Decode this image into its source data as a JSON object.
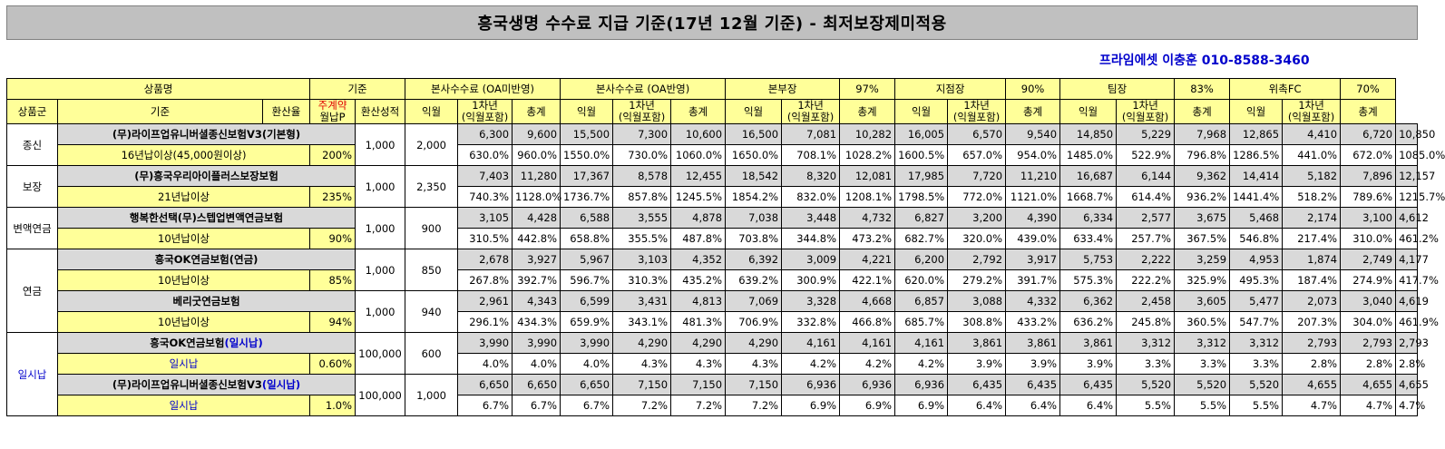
{
  "title": "흥국생명 수수료 지급 기준(17년 12월 기준) - 최저보장제미적용",
  "agent": "프라임에셋 이충훈 010-8588-3460",
  "header1": {
    "product": "상품명",
    "base": "기준",
    "groups": [
      {
        "label": "본사수수료 (OA미반영)",
        "pct": ""
      },
      {
        "label": "본사수수료 (OA반영)",
        "pct": ""
      },
      {
        "label": "본부장",
        "pct": "97%"
      },
      {
        "label": "지점장",
        "pct": "90%"
      },
      {
        "label": "팀장",
        "pct": "83%"
      },
      {
        "label": "위촉FC",
        "pct": "70%"
      }
    ]
  },
  "header2": {
    "group": "상품군",
    "criteria": "기준",
    "rate": "환산율",
    "weekly": "주계약",
    "monthly": "월납P",
    "score": "환산성적",
    "col1": "익월",
    "col2a": "1차년",
    "col2b": "(익월포함)",
    "col3": "총계"
  },
  "groups": [
    {
      "name": "종신"
    },
    {
      "name": "보장"
    },
    {
      "name": "변액연금"
    },
    {
      "name": "연금"
    },
    {
      "name": "일시납"
    }
  ],
  "products": [
    {
      "name": "(무)라이프업유니버셜종신보험V3(기본형)",
      "cond": "16년납이상(45,000원이상)",
      "rate": "200%",
      "prem": "1,000",
      "score": "2,000",
      "amounts": [
        "6,300",
        "9,600",
        "15,500",
        "7,300",
        "10,600",
        "16,500",
        "7,081",
        "10,282",
        "16,005",
        "6,570",
        "9,540",
        "14,850",
        "5,229",
        "7,968",
        "12,865",
        "4,410",
        "6,720",
        "10,850"
      ],
      "pcts": [
        "630.0%",
        "960.0%",
        "1550.0%",
        "730.0%",
        "1060.0%",
        "1650.0%",
        "708.1%",
        "1028.2%",
        "1600.5%",
        "657.0%",
        "954.0%",
        "1485.0%",
        "522.9%",
        "796.8%",
        "1286.5%",
        "441.0%",
        "672.0%",
        "1085.0%"
      ]
    },
    {
      "name": "(무)흥국우리아이플러스보장보험",
      "cond": "21년납이상",
      "rate": "235%",
      "prem": "1,000",
      "score": "2,350",
      "amounts": [
        "7,403",
        "11,280",
        "17,367",
        "8,578",
        "12,455",
        "18,542",
        "8,320",
        "12,081",
        "17,985",
        "7,720",
        "11,210",
        "16,687",
        "6,144",
        "9,362",
        "14,414",
        "5,182",
        "7,896",
        "12,157"
      ],
      "pcts": [
        "740.3%",
        "1128.0%",
        "1736.7%",
        "857.8%",
        "1245.5%",
        "1854.2%",
        "832.0%",
        "1208.1%",
        "1798.5%",
        "772.0%",
        "1121.0%",
        "1668.7%",
        "614.4%",
        "936.2%",
        "1441.4%",
        "518.2%",
        "789.6%",
        "1215.7%"
      ]
    },
    {
      "name": "행복한선택(무)스텝업변액연금보험",
      "cond": "10년납이상",
      "rate": "90%",
      "prem": "1,000",
      "score": "900",
      "amounts": [
        "3,105",
        "4,428",
        "6,588",
        "3,555",
        "4,878",
        "7,038",
        "3,448",
        "4,732",
        "6,827",
        "3,200",
        "4,390",
        "6,334",
        "2,577",
        "3,675",
        "5,468",
        "2,174",
        "3,100",
        "4,612"
      ],
      "pcts": [
        "310.5%",
        "442.8%",
        "658.8%",
        "355.5%",
        "487.8%",
        "703.8%",
        "344.8%",
        "473.2%",
        "682.7%",
        "320.0%",
        "439.0%",
        "633.4%",
        "257.7%",
        "367.5%",
        "546.8%",
        "217.4%",
        "310.0%",
        "461.2%"
      ]
    },
    {
      "name": "흥국OK연금보험(연금)",
      "cond": "10년납이상",
      "rate": "85%",
      "prem": "1,000",
      "score": "850",
      "amounts": [
        "2,678",
        "3,927",
        "5,967",
        "3,103",
        "4,352",
        "6,392",
        "3,009",
        "4,221",
        "6,200",
        "2,792",
        "3,917",
        "5,753",
        "2,222",
        "3,259",
        "4,953",
        "1,874",
        "2,749",
        "4,177"
      ],
      "pcts": [
        "267.8%",
        "392.7%",
        "596.7%",
        "310.3%",
        "435.2%",
        "639.2%",
        "300.9%",
        "422.1%",
        "620.0%",
        "279.2%",
        "391.7%",
        "575.3%",
        "222.2%",
        "325.9%",
        "495.3%",
        "187.4%",
        "274.9%",
        "417.7%"
      ]
    },
    {
      "name": "베리굿연금보험",
      "cond": "10년납이상",
      "rate": "94%",
      "prem": "1,000",
      "score": "940",
      "amounts": [
        "2,961",
        "4,343",
        "6,599",
        "3,431",
        "4,813",
        "7,069",
        "3,328",
        "4,668",
        "6,857",
        "3,088",
        "4,332",
        "6,362",
        "2,458",
        "3,605",
        "5,477",
        "2,073",
        "3,040",
        "4,619"
      ],
      "pcts": [
        "296.1%",
        "434.3%",
        "659.9%",
        "343.1%",
        "481.3%",
        "706.9%",
        "332.8%",
        "466.8%",
        "685.7%",
        "308.8%",
        "433.2%",
        "636.2%",
        "245.8%",
        "360.5%",
        "547.7%",
        "207.3%",
        "304.0%",
        "461.9%"
      ]
    },
    {
      "name": "흥국OK연금보험",
      "nameSuffix": "(일시납)",
      "cond": "일시납",
      "rate": "0.60%",
      "prem": "100,000",
      "score": "600",
      "amounts": [
        "3,990",
        "3,990",
        "3,990",
        "4,290",
        "4,290",
        "4,290",
        "4,161",
        "4,161",
        "4,161",
        "3,861",
        "3,861",
        "3,861",
        "3,312",
        "3,312",
        "3,312",
        "2,793",
        "2,793",
        "2,793"
      ],
      "pcts": [
        "4.0%",
        "4.0%",
        "4.0%",
        "4.3%",
        "4.3%",
        "4.3%",
        "4.2%",
        "4.2%",
        "4.2%",
        "3.9%",
        "3.9%",
        "3.9%",
        "3.3%",
        "3.3%",
        "3.3%",
        "2.8%",
        "2.8%",
        "2.8%"
      ]
    },
    {
      "name": "(무)라이프업유니버셜종신보험V3",
      "nameSuffix": "(일시납)",
      "cond": "일시납",
      "rate": "1.0%",
      "prem": "100,000",
      "score": "1,000",
      "amounts": [
        "6,650",
        "6,650",
        "6,650",
        "7,150",
        "7,150",
        "7,150",
        "6,936",
        "6,936",
        "6,936",
        "6,435",
        "6,435",
        "6,435",
        "5,520",
        "5,520",
        "5,520",
        "4,655",
        "4,655",
        "4,655"
      ],
      "pcts": [
        "6.7%",
        "6.7%",
        "6.7%",
        "7.2%",
        "7.2%",
        "7.2%",
        "6.9%",
        "6.9%",
        "6.9%",
        "6.4%",
        "6.4%",
        "6.4%",
        "5.5%",
        "5.5%",
        "5.5%",
        "4.7%",
        "4.7%",
        "4.7%"
      ]
    }
  ]
}
